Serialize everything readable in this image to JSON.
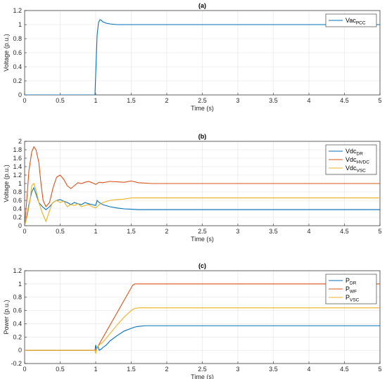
{
  "chart_data": [
    {
      "type": "line",
      "title": "(a)",
      "xlabel": "Time (s)",
      "ylabel": "Voltage (p.u.)",
      "xlim": [
        0,
        5
      ],
      "ylim": [
        0,
        1.2
      ],
      "xticks": [
        "0",
        "0.5",
        "1",
        "1.5",
        "2",
        "2.5",
        "3",
        "3.5",
        "4",
        "4.5",
        "5"
      ],
      "yticks": [
        "0",
        "0.2",
        "0.4",
        "0.6",
        "0.8",
        "1",
        "1.2"
      ],
      "grid": true,
      "legend_position": "top-right",
      "series": [
        {
          "name": "Vac",
          "name_sub": "PCC",
          "color": "#0072BD",
          "x": [
            0,
            0.99,
            1.0,
            1.02,
            1.04,
            1.06,
            1.08,
            1.1,
            1.15,
            1.2,
            1.3,
            1.5,
            2,
            3,
            4,
            5
          ],
          "y": [
            0,
            0,
            0.3,
            0.85,
            1.03,
            1.07,
            1.06,
            1.04,
            1.02,
            1.01,
            1.0,
            1.0,
            1.0,
            1.0,
            1.0,
            1.0
          ]
        }
      ]
    },
    {
      "type": "line",
      "title": "(b)",
      "xlabel": "Time (s)",
      "ylabel": "Voltage (p.u.)",
      "xlim": [
        0,
        5
      ],
      "ylim": [
        0,
        2
      ],
      "xticks": [
        "0",
        "0.5",
        "1",
        "1.5",
        "2",
        "2.5",
        "3",
        "3.5",
        "4",
        "4.5",
        "5"
      ],
      "yticks": [
        "0",
        "0.2",
        "0.4",
        "0.6",
        "0.8",
        "1",
        "1.2",
        "1.4",
        "1.6",
        "1.8",
        "2"
      ],
      "grid": true,
      "legend_position": "top-right",
      "series": [
        {
          "name": "Vdc",
          "name_sub": "DR",
          "color": "#0072BD",
          "x": [
            0,
            0.03,
            0.06,
            0.1,
            0.13,
            0.16,
            0.2,
            0.25,
            0.3,
            0.35,
            0.4,
            0.45,
            0.5,
            0.55,
            0.6,
            0.65,
            0.7,
            0.75,
            0.8,
            0.85,
            0.9,
            0.95,
            1.0,
            1.02,
            1.05,
            1.1,
            1.2,
            1.3,
            1.4,
            1.5,
            1.6,
            1.8,
            2,
            3,
            4,
            5
          ],
          "y": [
            0,
            0.2,
            0.5,
            0.8,
            0.9,
            0.75,
            0.55,
            0.45,
            0.38,
            0.45,
            0.55,
            0.6,
            0.62,
            0.58,
            0.55,
            0.5,
            0.55,
            0.52,
            0.5,
            0.55,
            0.52,
            0.5,
            0.48,
            0.6,
            0.55,
            0.5,
            0.45,
            0.42,
            0.4,
            0.39,
            0.38,
            0.38,
            0.38,
            0.38,
            0.38,
            0.38
          ]
        },
        {
          "name": "Vdc",
          "name_sub": "HVDC",
          "color": "#D95319",
          "x": [
            0,
            0.03,
            0.06,
            0.1,
            0.13,
            0.16,
            0.2,
            0.23,
            0.26,
            0.3,
            0.35,
            0.4,
            0.45,
            0.5,
            0.55,
            0.6,
            0.65,
            0.7,
            0.75,
            0.8,
            0.85,
            0.9,
            0.95,
            1.0,
            1.05,
            1.1,
            1.2,
            1.3,
            1.4,
            1.5,
            1.6,
            1.8,
            2,
            3,
            4,
            5
          ],
          "y": [
            0,
            0.6,
            1.3,
            1.75,
            1.87,
            1.8,
            1.5,
            1.0,
            0.6,
            0.45,
            0.55,
            0.9,
            1.15,
            1.2,
            1.1,
            0.95,
            0.88,
            0.95,
            1.02,
            1.0,
            1.03,
            1.05,
            1.02,
            0.98,
            1.03,
            1.02,
            1.05,
            1.04,
            1.03,
            1.06,
            1.02,
            1.0,
            1.0,
            1.0,
            1.0,
            1.0
          ]
        },
        {
          "name": "Vdc",
          "name_sub": "VSC",
          "color": "#EDB120",
          "x": [
            0,
            0.04,
            0.08,
            0.1,
            0.13,
            0.16,
            0.2,
            0.25,
            0.3,
            0.33,
            0.38,
            0.4,
            0.45,
            0.5,
            0.55,
            0.6,
            0.65,
            0.7,
            0.75,
            0.8,
            0.85,
            0.9,
            0.95,
            1.0,
            1.05,
            1.1,
            1.2,
            1.3,
            1.4,
            1.5,
            1.6,
            1.8,
            2,
            3,
            4,
            5
          ],
          "y": [
            0,
            0.25,
            0.65,
            0.95,
            1.0,
            0.85,
            0.55,
            0.3,
            0.1,
            0.25,
            0.5,
            0.55,
            0.6,
            0.55,
            0.58,
            0.45,
            0.5,
            0.48,
            0.52,
            0.45,
            0.48,
            0.5,
            0.45,
            0.42,
            0.5,
            0.55,
            0.6,
            0.62,
            0.63,
            0.66,
            0.66,
            0.66,
            0.66,
            0.66,
            0.66,
            0.66
          ]
        }
      ]
    },
    {
      "type": "line",
      "title": "(c)",
      "xlabel": "Time (s)",
      "ylabel": "Power (p.u.)",
      "xlim": [
        0,
        5
      ],
      "ylim": [
        -0.2,
        1.2
      ],
      "xticks": [
        "0",
        "0.5",
        "1",
        "1.5",
        "2",
        "2.5",
        "3",
        "3.5",
        "4",
        "4.5",
        "5"
      ],
      "yticks": [
        "-0.2",
        "0",
        "0.2",
        "0.4",
        "0.6",
        "0.8",
        "1",
        "1.2"
      ],
      "grid": true,
      "legend_position": "top-right",
      "series": [
        {
          "name": "P",
          "name_sub": "DR",
          "color": "#0072BD",
          "x": [
            0,
            0.99,
            1.0,
            1.01,
            1.03,
            1.05,
            1.08,
            1.1,
            1.15,
            1.2,
            1.3,
            1.4,
            1.5,
            1.55,
            1.6,
            1.7,
            1.8,
            2,
            3,
            4,
            5
          ],
          "y": [
            0,
            0,
            0.08,
            0.02,
            0.06,
            0.0,
            0.02,
            0.04,
            0.08,
            0.14,
            0.22,
            0.29,
            0.33,
            0.35,
            0.36,
            0.37,
            0.37,
            0.37,
            0.37,
            0.37,
            0.37
          ]
        },
        {
          "name": "P",
          "name_sub": "WF",
          "color": "#D95319",
          "x": [
            0,
            1.0,
            1.52,
            1.55,
            2,
            3,
            4,
            5
          ],
          "y": [
            0,
            0,
            0.98,
            1.0,
            1.0,
            1.0,
            1.0,
            1.0
          ]
        },
        {
          "name": "P",
          "name_sub": "VSC",
          "color": "#EDB120",
          "x": [
            0,
            0.99,
            1.0,
            1.02,
            1.05,
            1.1,
            1.2,
            1.3,
            1.4,
            1.5,
            1.55,
            1.6,
            1.7,
            2,
            3,
            4,
            5
          ],
          "y": [
            0,
            0,
            -0.05,
            0.05,
            0.08,
            0.12,
            0.25,
            0.38,
            0.5,
            0.6,
            0.63,
            0.64,
            0.64,
            0.64,
            0.64,
            0.64,
            0.64
          ]
        }
      ]
    }
  ]
}
